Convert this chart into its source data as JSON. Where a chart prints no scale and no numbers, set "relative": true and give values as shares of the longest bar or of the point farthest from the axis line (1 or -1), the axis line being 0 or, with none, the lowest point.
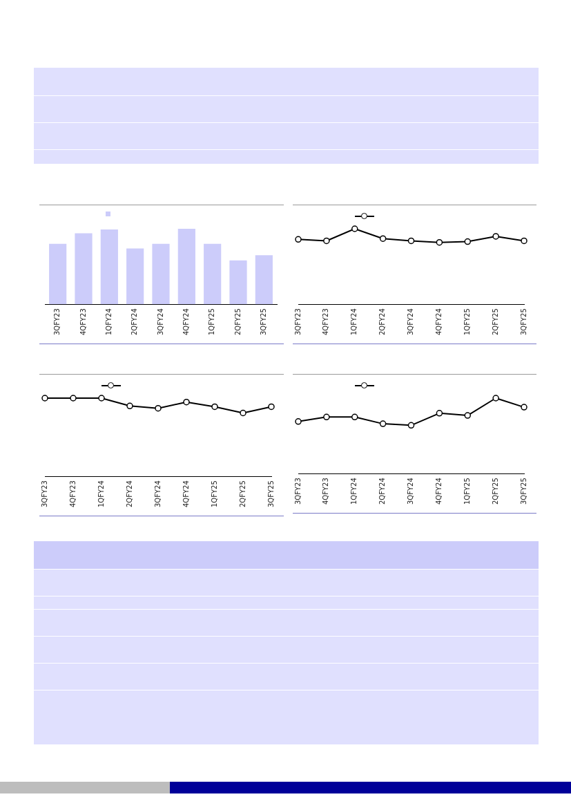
{
  "chart_data": [
    {
      "type": "bar",
      "categories": [
        "3QFY23",
        "4QFY23",
        "1QFY24",
        "2QFY24",
        "3QFY24",
        "4QFY24",
        "1QFY25",
        "2QFY25",
        "3QFY25"
      ],
      "values": [
        0.8,
        0.94,
        0.99,
        0.74,
        0.8,
        1,
        0.8,
        0.58,
        0.65
      ],
      "color": "#ccccfa",
      "relative": true,
      "grid": false,
      "legend": false
    },
    {
      "type": "line",
      "categories": [
        "3QFY23",
        "4QFY23",
        "1QFY24",
        "2QFY24",
        "3QFY24",
        "4QFY24",
        "1QFY25",
        "2QFY25",
        "3QFY25"
      ],
      "series": [
        {
          "color": "#000000",
          "values": [
            0.86,
            0.84,
            1,
            0.87,
            0.84,
            0.82,
            0.83,
            0.9,
            0.84
          ]
        }
      ],
      "relative": true,
      "marker": "circle",
      "line_style": "solid",
      "grid": false,
      "legend": false
    },
    {
      "type": "line",
      "categories": [
        "3QFY23",
        "4QFY23",
        "1QFY24",
        "2QFY24",
        "3QFY24",
        "4QFY24",
        "1QFY25",
        "2QFY25",
        "3QFY25"
      ],
      "series": [
        {
          "color": "#000000",
          "values": [
            1,
            1,
            1,
            0.9,
            0.87,
            0.95,
            0.89,
            0.81,
            0.89
          ]
        }
      ],
      "relative": true,
      "marker": "circle",
      "line_style": "solid",
      "grid": false,
      "legend": false
    },
    {
      "type": "line",
      "categories": [
        "3QFY23",
        "4QFY23",
        "1QFY24",
        "2QFY24",
        "3QFY24",
        "4QFY24",
        "1QFY25",
        "2QFY25",
        "3QFY25"
      ],
      "series": [
        {
          "color": "#000000",
          "values": [
            0.69,
            0.75,
            0.75,
            0.66,
            0.64,
            0.8,
            0.77,
            1,
            0.88
          ]
        }
      ],
      "relative": true,
      "marker": "circle",
      "line_style": "solid",
      "grid": false,
      "legend": false
    }
  ]
}
